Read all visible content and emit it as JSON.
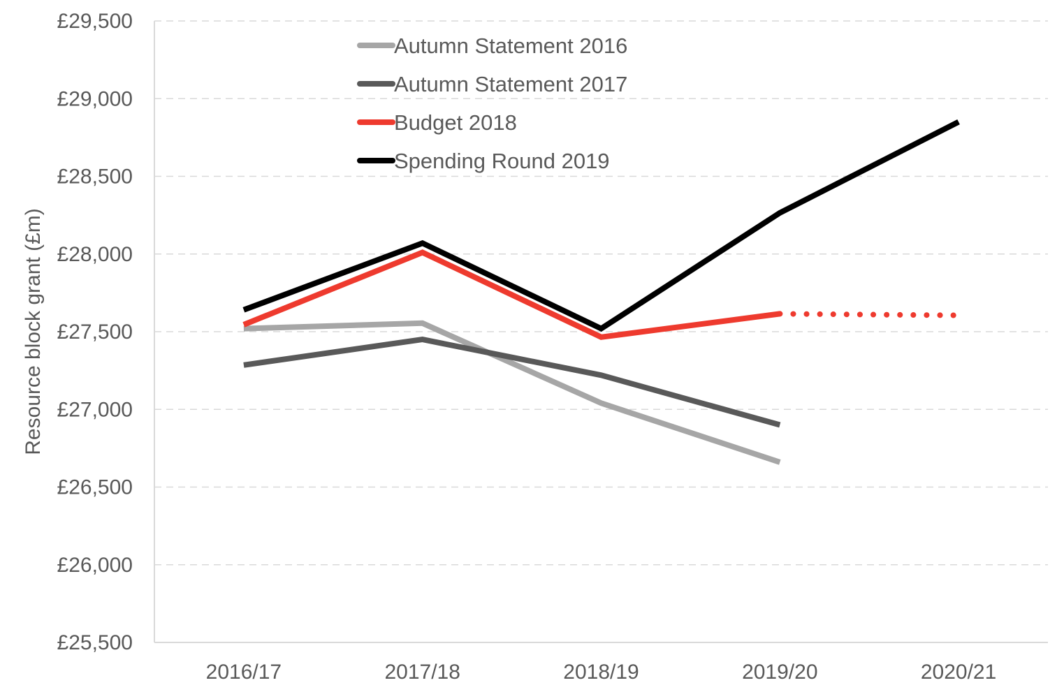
{
  "chart_data": {
    "type": "line",
    "title": "",
    "xlabel": "",
    "ylabel": "Resource block grant (£m)",
    "x": [
      "2016/17",
      "2017/18",
      "2018/19",
      "2019/20",
      "2020/21"
    ],
    "ylim": [
      25500,
      29500
    ],
    "yticks": [
      25500,
      26000,
      26500,
      27000,
      27500,
      28000,
      28500,
      29000,
      29500
    ],
    "ytick_labels": [
      "£25,500",
      "£26,000",
      "£26,500",
      "£27,000",
      "£27,500",
      "£28,000",
      "£28,500",
      "£29,000",
      "£29,500"
    ],
    "grid": "horizontal dashed",
    "legend_position": "top-left",
    "series": [
      {
        "name": "Autumn Statement 2016",
        "color": "#a6a6a6",
        "values": [
          27520,
          27555,
          27040,
          26660,
          null
        ]
      },
      {
        "name": "Autumn Statement 2017",
        "color": "#595959",
        "values": [
          27285,
          27450,
          27220,
          26900,
          null
        ]
      },
      {
        "name": "Budget 2018",
        "color": "#ee3a2e",
        "values": [
          27545,
          28010,
          27465,
          27615,
          null
        ],
        "projection": {
          "style": "dotted",
          "x": [
            "2019/20",
            "2020/21"
          ],
          "values": [
            27615,
            27605
          ]
        }
      },
      {
        "name": "Spending Round 2019",
        "color": "#000000",
        "values": [
          27640,
          28070,
          27520,
          28265,
          28850
        ]
      }
    ]
  }
}
